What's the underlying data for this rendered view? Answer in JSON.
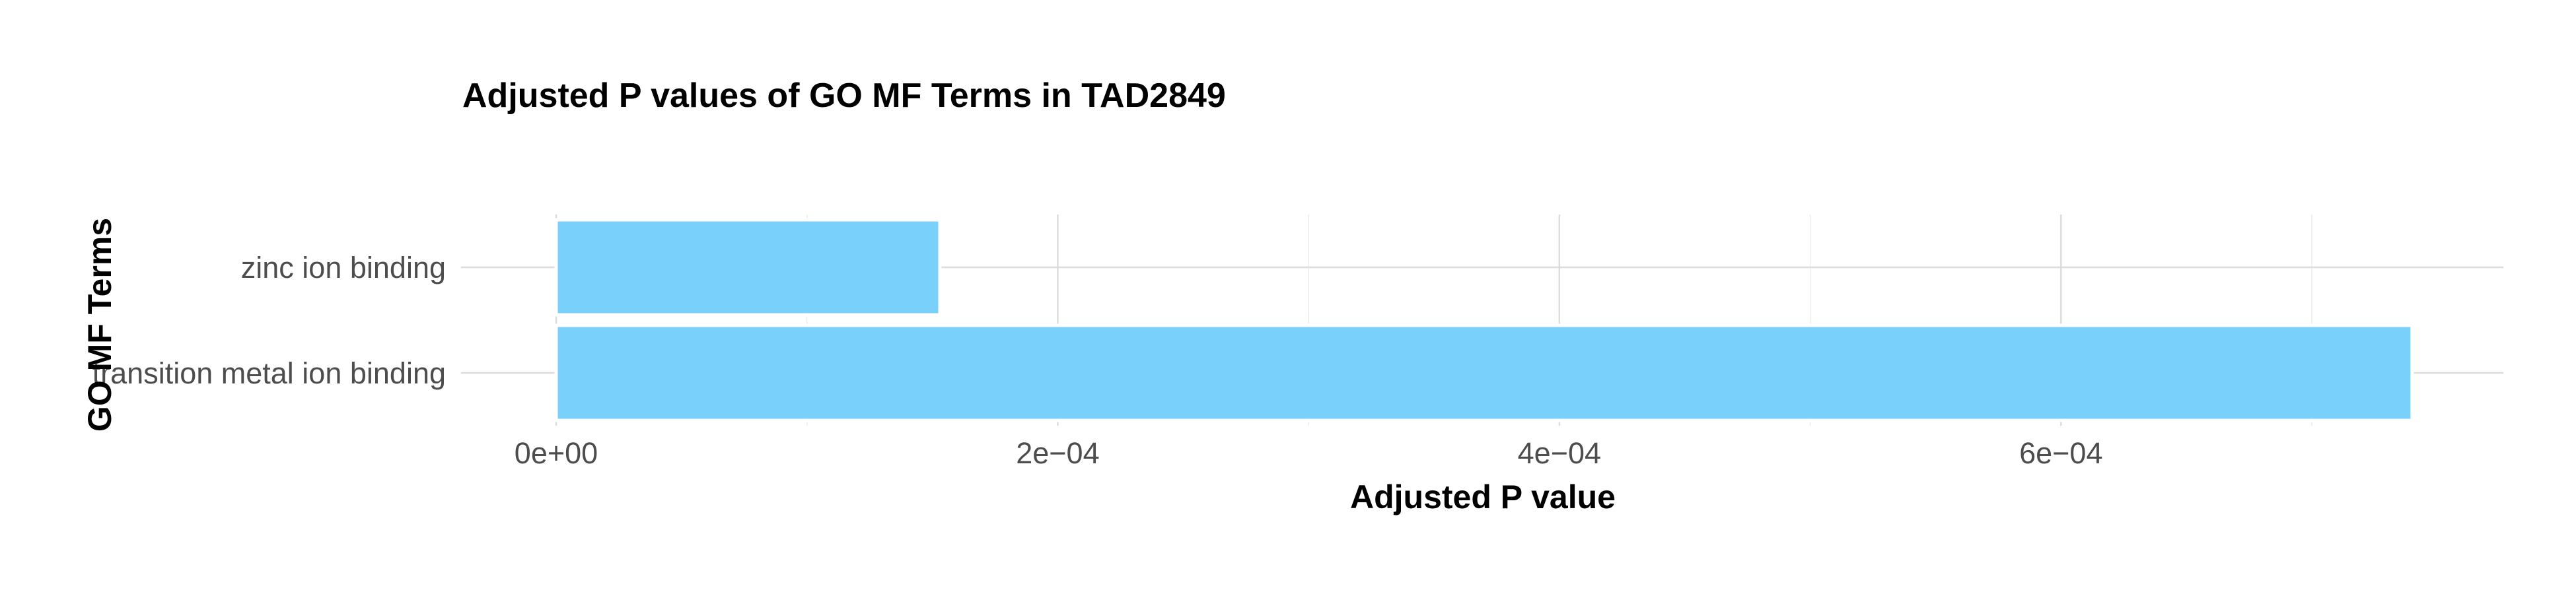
{
  "chart_data": {
    "type": "bar",
    "orientation": "horizontal",
    "title": "Adjusted P values of GO MF Terms in TAD2849",
    "xlabel": "Adjusted P value",
    "ylabel": "GO MF Terms",
    "categories": [
      "zinc ion binding",
      "transition metal ion binding"
    ],
    "values": [
      0.000153,
      0.00074
    ],
    "xlim": [
      0,
      0.000778
    ],
    "xticks": [
      0,
      0.0002,
      0.0004,
      0.0006
    ],
    "xtick_labels": [
      "0e+00",
      "2e−04",
      "4e−04",
      "6e−04"
    ],
    "bar_color": "#75CFFB",
    "bar_border_color": "#ffffff",
    "grid": true,
    "legend": "none"
  }
}
